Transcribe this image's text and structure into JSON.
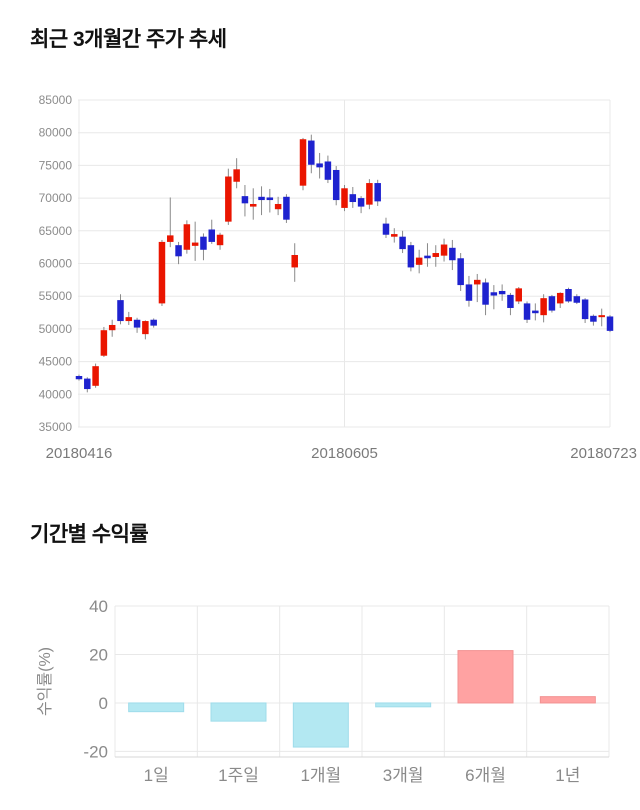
{
  "chart_data": [
    {
      "type": "candlestick",
      "title": "최근 3개월간 주가 추세",
      "x_tick_labels": [
        "20180416",
        "20180605",
        "20180723"
      ],
      "x_tick_candle_index": [
        0,
        32,
        64
      ],
      "y_ticks": [
        85000,
        80000,
        75000,
        70000,
        65000,
        60000,
        55000,
        50000,
        45000,
        40000,
        35000
      ],
      "ylim": [
        35000,
        85000
      ],
      "grid": true,
      "up_color": "#ea1500",
      "down_color": "#1e22cf",
      "wick_color": "#898989",
      "grid_color": "#e8e8e8",
      "y_tick_text_color": "#8c8c8c",
      "x_tick_text_color": "#7a7a7a",
      "candles_ohlc": [
        [
          42800,
          43000,
          42100,
          42300
        ],
        [
          42400,
          42600,
          40300,
          40800
        ],
        [
          41300,
          44700,
          41000,
          44300
        ],
        [
          45900,
          50300,
          45700,
          49800
        ],
        [
          49800,
          51400,
          48800,
          50600
        ],
        [
          54400,
          55300,
          50700,
          51200
        ],
        [
          51200,
          52600,
          50600,
          51800
        ],
        [
          51400,
          51700,
          49400,
          50200
        ],
        [
          49200,
          51300,
          48400,
          51200
        ],
        [
          51400,
          51600,
          50200,
          50500
        ],
        [
          53900,
          63600,
          53500,
          63300
        ],
        [
          63300,
          70100,
          62500,
          64300
        ],
        [
          62800,
          63300,
          59900,
          61100
        ],
        [
          62100,
          66600,
          61500,
          66000
        ],
        [
          62700,
          66400,
          60400,
          63200
        ],
        [
          64100,
          64600,
          60500,
          62100
        ],
        [
          65200,
          66700,
          63000,
          63300
        ],
        [
          62800,
          64700,
          62100,
          64400
        ],
        [
          66400,
          74500,
          65900,
          73300
        ],
        [
          72500,
          76100,
          71500,
          74400
        ],
        [
          70300,
          72000,
          67200,
          69200
        ],
        [
          68700,
          71500,
          66700,
          69100
        ],
        [
          70200,
          71800,
          67400,
          69700
        ],
        [
          70100,
          71400,
          67800,
          69700
        ],
        [
          68300,
          70200,
          67400,
          69100
        ],
        [
          70200,
          70600,
          66200,
          66700
        ],
        [
          59400,
          63100,
          57200,
          61300
        ],
        [
          71900,
          79200,
          71200,
          79000
        ],
        [
          78800,
          79700,
          73800,
          75100
        ],
        [
          75300,
          76900,
          73000,
          74700
        ],
        [
          75600,
          76500,
          72300,
          72800
        ],
        [
          74300,
          74900,
          68900,
          69700
        ],
        [
          68500,
          72000,
          68000,
          71500
        ],
        [
          70600,
          71700,
          68500,
          69400
        ],
        [
          70000,
          70300,
          67700,
          68700
        ],
        [
          69000,
          72900,
          68300,
          72300
        ],
        [
          72300,
          72800,
          68800,
          69500
        ],
        [
          66100,
          67000,
          63900,
          64400
        ],
        [
          64100,
          65400,
          63200,
          64500
        ],
        [
          64100,
          65000,
          61600,
          62200
        ],
        [
          62800,
          63300,
          58800,
          59400
        ],
        [
          59800,
          62100,
          58500,
          60900
        ],
        [
          61200,
          63100,
          59500,
          60800
        ],
        [
          61000,
          62800,
          59500,
          61600
        ],
        [
          61200,
          63800,
          60300,
          62900
        ],
        [
          62400,
          63600,
          59000,
          60500
        ],
        [
          60800,
          61600,
          55800,
          56700
        ],
        [
          56800,
          58100,
          53400,
          54300
        ],
        [
          56800,
          58400,
          54100,
          57500
        ],
        [
          57100,
          57700,
          52100,
          53700
        ],
        [
          55600,
          56700,
          53000,
          55100
        ],
        [
          55800,
          56800,
          54300,
          55300
        ],
        [
          55200,
          55500,
          52100,
          53200
        ],
        [
          54200,
          56400,
          53800,
          56200
        ],
        [
          53900,
          54200,
          50900,
          51400
        ],
        [
          52800,
          53900,
          51300,
          52400
        ],
        [
          52100,
          55300,
          51000,
          54700
        ],
        [
          55000,
          55200,
          52500,
          52800
        ],
        [
          53900,
          55600,
          53200,
          55500
        ],
        [
          56100,
          56300,
          54000,
          54200
        ],
        [
          55000,
          55300,
          53800,
          54000
        ],
        [
          54500,
          54700,
          50900,
          51500
        ],
        [
          52000,
          52200,
          50500,
          51100
        ],
        [
          51800,
          53100,
          50400,
          52100
        ],
        [
          51900,
          52100,
          49500,
          49700
        ]
      ]
    },
    {
      "type": "bar",
      "title": "기간별 수익률",
      "ylabel": "수익률(%)",
      "categories": [
        "1일",
        "1주일",
        "1개월",
        "3개월",
        "6개월",
        "1년"
      ],
      "values": [
        -3.6,
        -7.5,
        -18.2,
        -1.6,
        21.6,
        2.6
      ],
      "y_ticks": [
        40,
        20,
        0,
        -20
      ],
      "ylim": [
        -22.3,
        40
      ],
      "grid": true,
      "legend": false,
      "negative_fill": "#b3e8f2",
      "negative_border": "#9fdcea",
      "positive_fill": "#ffa2a2",
      "positive_border": "#f29292",
      "grid_color": "#e8e8e8",
      "axis_line_color": "#d7d7d7",
      "tick_text_color": "#8a8a8a"
    }
  ]
}
